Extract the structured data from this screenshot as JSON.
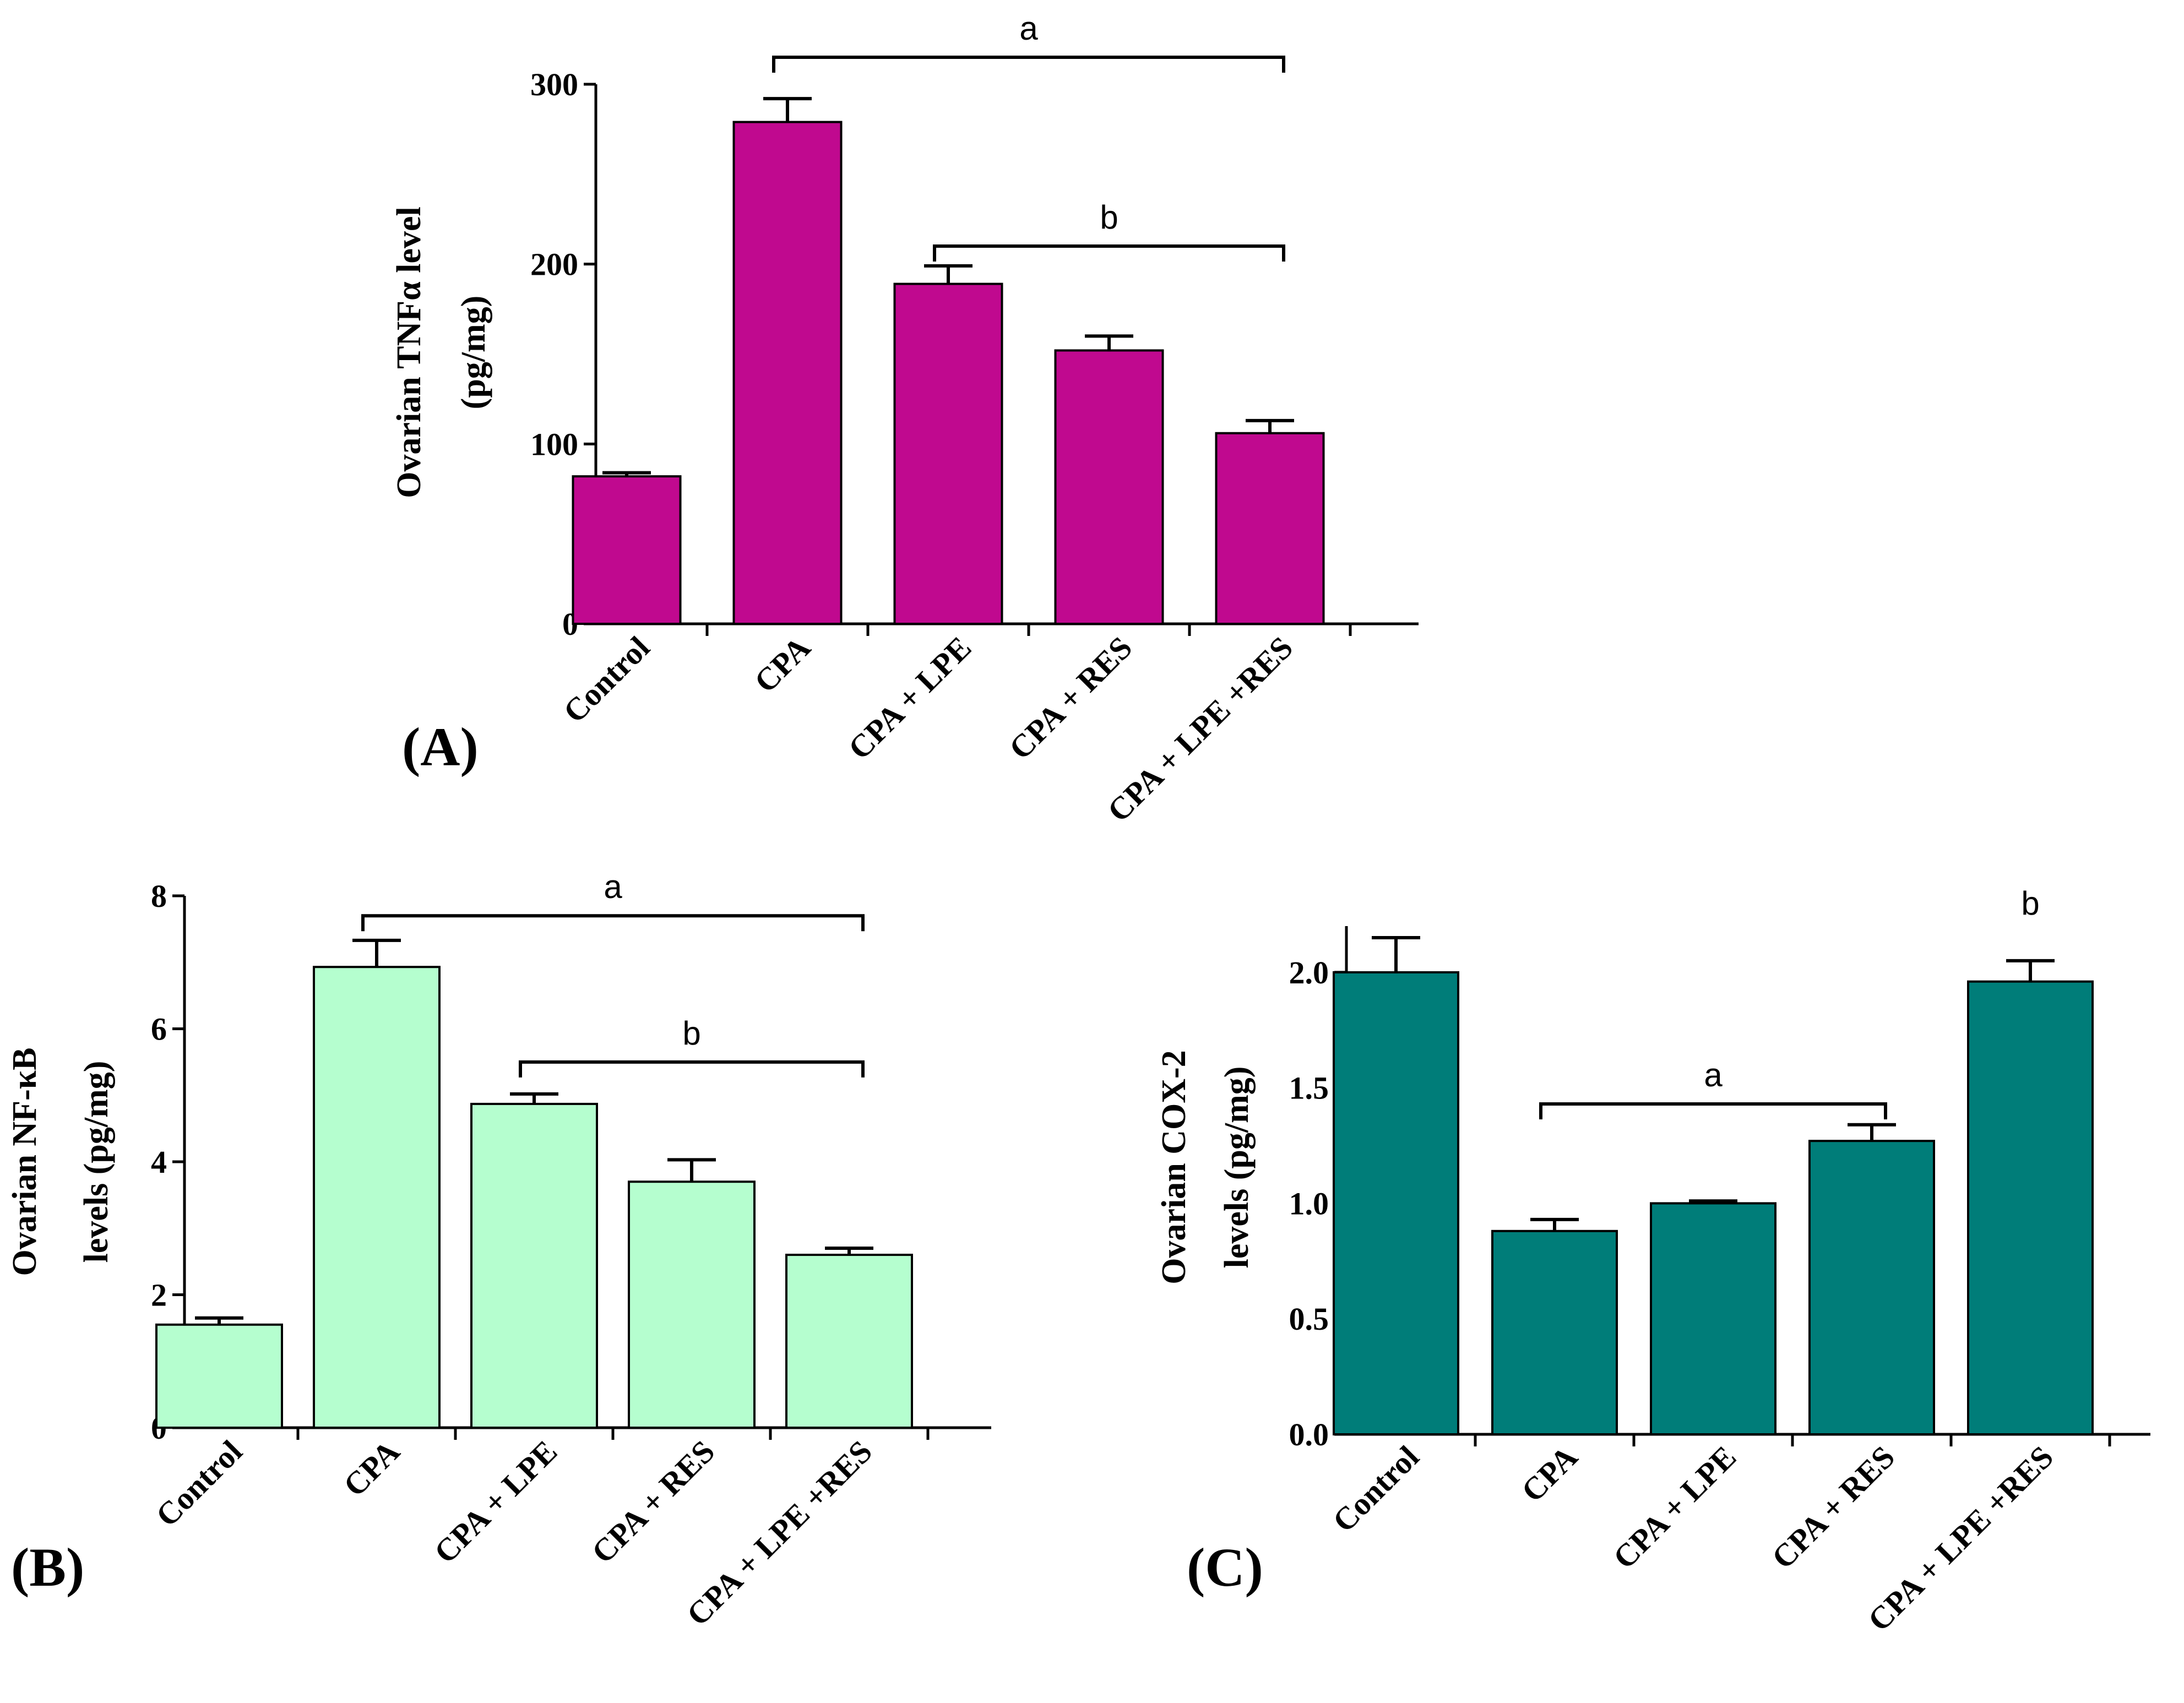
{
  "chart_data": [
    {
      "panel": "(A)",
      "type": "bar",
      "ylabel_lines": [
        "Ovarian TNFα level",
        "(pg/mg)"
      ],
      "categories": [
        "Control",
        "CPA",
        "CPA + LPE",
        "CPA + RES",
        "CPA + LPE +RES"
      ],
      "values": [
        82,
        279,
        189,
        152,
        106
      ],
      "errors": [
        2,
        13,
        10,
        8,
        7
      ],
      "ylim": [
        0,
        300
      ],
      "yticks": [
        0,
        100,
        200,
        300
      ],
      "ytick_labels": [
        "0",
        "100",
        "200",
        "300"
      ],
      "bar_color": "#c0098f",
      "significance": [
        {
          "label": "a",
          "from": 1,
          "to": 4,
          "y": 315
        },
        {
          "label": "b",
          "from": 2,
          "to": 4,
          "y": 210
        }
      ]
    },
    {
      "panel": "(B)",
      "type": "bar",
      "ylabel_lines": [
        "Ovarian NF-κB",
        "levels (pg/mg)"
      ],
      "categories": [
        "Control",
        "CPA",
        "CPA + LPE",
        "CPA + RES",
        "CPA + LPE +RES"
      ],
      "values": [
        1.55,
        6.93,
        4.87,
        3.7,
        2.6
      ],
      "errors": [
        0.1,
        0.4,
        0.15,
        0.33,
        0.1
      ],
      "ylim": [
        0,
        8
      ],
      "yticks": [
        0,
        2,
        4,
        6,
        8
      ],
      "ytick_labels": [
        "0",
        "2",
        "4",
        "6",
        "8"
      ],
      "bar_color": "#b5fecf",
      "significance": [
        {
          "label": "a",
          "from": 1,
          "to": 4,
          "y": 7.7
        },
        {
          "label": "b",
          "from": 2,
          "to": 4,
          "y": 5.5
        }
      ]
    },
    {
      "panel": "(C)",
      "type": "bar",
      "ylabel_lines": [
        "Ovarian COX-2",
        "levels (pg/mg)"
      ],
      "categories": [
        "Control",
        "CPA",
        "CPA + LPE",
        "CPA + RES",
        "CPA + LPE +RES"
      ],
      "values": [
        2.0,
        0.88,
        1.0,
        1.27,
        1.96
      ],
      "errors": [
        0.15,
        0.05,
        0.01,
        0.07,
        0.09
      ],
      "ylim": [
        0,
        2.2
      ],
      "yticks": [
        0.0,
        0.5,
        1.0,
        1.5,
        2.0
      ],
      "ytick_labels": [
        "0.0",
        "0.5",
        "1.0",
        "1.5",
        "2.0"
      ],
      "bar_color": "#007d79",
      "significance": [
        {
          "label": "a",
          "from": 1,
          "to": 3,
          "y": 1.43
        },
        {
          "label": "b",
          "at": 4,
          "y": 2.25
        }
      ]
    }
  ]
}
